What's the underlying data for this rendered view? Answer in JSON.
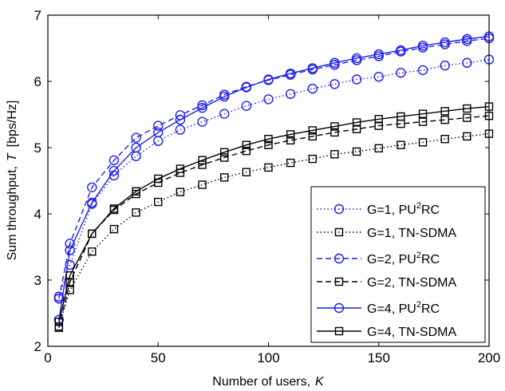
{
  "chart_data": {
    "type": "line",
    "xlabel": "Number of users,",
    "xlabel_var": "K",
    "ylabel": "Sum throughput,",
    "ylabel_var": "T",
    "ylabel_unit": "[bps/Hz]",
    "xlim": [
      0,
      200
    ],
    "ylim": [
      2,
      7
    ],
    "xticks": [
      0,
      50,
      100,
      150,
      200
    ],
    "yticks": [
      2,
      3,
      4,
      5,
      6,
      7
    ],
    "grid": false,
    "legend_position": "bottom-right",
    "x": [
      5,
      10,
      20,
      30,
      40,
      50,
      60,
      70,
      80,
      90,
      100,
      110,
      120,
      130,
      140,
      150,
      160,
      170,
      180,
      190,
      200
    ],
    "series": [
      {
        "label_main": "G=1, PU",
        "label_sup": "2",
        "label_tail": "RC",
        "color": "#1f1ff0",
        "dash": "dotted",
        "marker": "circle",
        "values": [
          2.75,
          3.23,
          4.15,
          4.58,
          4.87,
          5.1,
          5.27,
          5.39,
          5.51,
          5.63,
          5.73,
          5.81,
          5.89,
          5.96,
          6.03,
          6.07,
          6.13,
          6.17,
          6.24,
          6.28,
          6.33
        ]
      },
      {
        "label_main": "G=1, TN-SDMA",
        "label_sup": "",
        "label_tail": "",
        "color": "#000000",
        "dash": "dotted",
        "marker": "square",
        "values": [
          2.3,
          2.85,
          3.43,
          3.77,
          4.02,
          4.18,
          4.33,
          4.44,
          4.55,
          4.63,
          4.7,
          4.77,
          4.83,
          4.9,
          4.94,
          4.99,
          5.04,
          5.08,
          5.13,
          5.17,
          5.21
        ]
      },
      {
        "label_main": "G=2, PU",
        "label_sup": "2",
        "label_tail": "RC",
        "color": "#1f1ff0",
        "dash": "dashed",
        "marker": "circle",
        "values": [
          2.72,
          3.55,
          4.4,
          4.81,
          5.15,
          5.33,
          5.49,
          5.64,
          5.8,
          5.92,
          6.02,
          6.1,
          6.18,
          6.25,
          6.32,
          6.38,
          6.45,
          6.51,
          6.56,
          6.61,
          6.65
        ]
      },
      {
        "label_main": "G=2, TN-SDMA",
        "label_sup": "",
        "label_tail": "",
        "color": "#000000",
        "dash": "dashed",
        "marker": "square",
        "values": [
          2.28,
          2.97,
          3.7,
          4.06,
          4.3,
          4.47,
          4.62,
          4.74,
          4.85,
          4.95,
          5.04,
          5.11,
          5.17,
          5.23,
          5.28,
          5.33,
          5.36,
          5.39,
          5.42,
          5.45,
          5.48
        ]
      },
      {
        "label_main": "G=4, PU",
        "label_sup": "2",
        "label_tail": "RC",
        "color": "#1f1ff0",
        "dash": "solid",
        "marker": "circle",
        "values": [
          2.4,
          3.45,
          4.17,
          4.65,
          5.0,
          5.23,
          5.42,
          5.6,
          5.77,
          5.91,
          6.03,
          6.12,
          6.2,
          6.28,
          6.35,
          6.41,
          6.47,
          6.54,
          6.59,
          6.64,
          6.68
        ]
      },
      {
        "label_main": "G=4, TN-SDMA",
        "label_sup": "",
        "label_tail": "",
        "color": "#000000",
        "dash": "solid",
        "marker": "square",
        "values": [
          2.37,
          3.07,
          3.7,
          4.08,
          4.34,
          4.53,
          4.68,
          4.81,
          4.93,
          5.04,
          5.13,
          5.2,
          5.26,
          5.32,
          5.38,
          5.43,
          5.47,
          5.51,
          5.55,
          5.59,
          5.62
        ]
      }
    ]
  }
}
